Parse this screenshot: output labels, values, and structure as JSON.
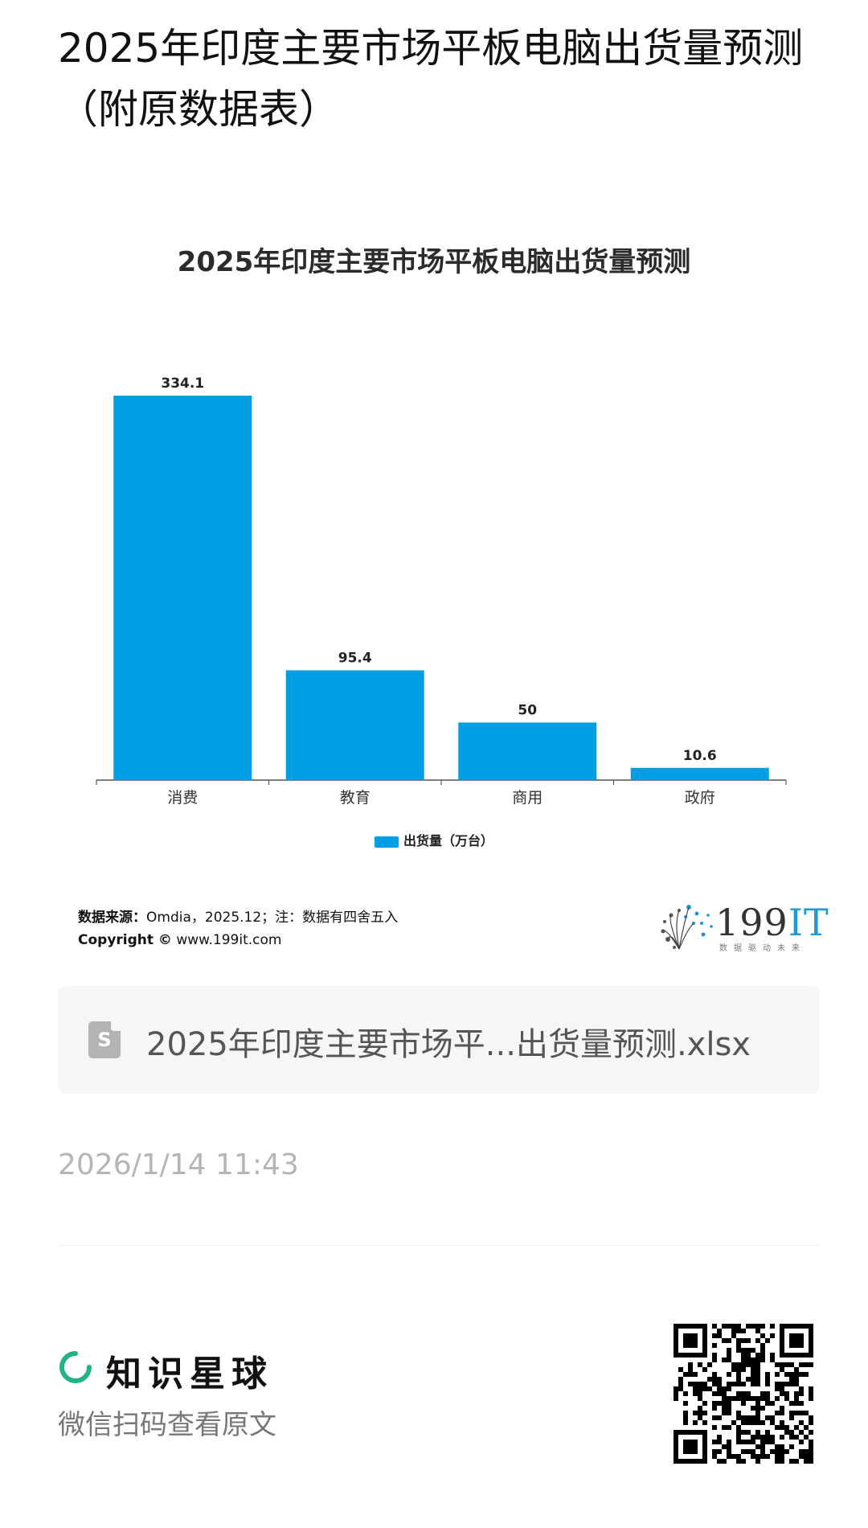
{
  "page": {
    "title": "2025年印度主要市场平板电脑出货量预测（附原数据表）"
  },
  "chart_data": {
    "type": "bar",
    "title": "2025年印度主要市场平板电脑出货量预测",
    "categories": [
      "消费",
      "教育",
      "商用",
      "政府"
    ],
    "series": [
      {
        "name": "出货量（万台）",
        "values": [
          334.1,
          95.4,
          50,
          10.6
        ]
      }
    ],
    "data_labels": [
      "334.1",
      "95.4",
      "50",
      "10.6"
    ],
    "ylim": [
      0,
      334.1
    ],
    "legend_position": "bottom",
    "grid": false,
    "bar_color": "#009fe3"
  },
  "source": {
    "label": "数据来源：",
    "text": "Omdia，2025.12；注：数据有四舍五入",
    "copyright_label": "Copyright ©",
    "copyright_text": "www.199it.com"
  },
  "logo": {
    "text": "199",
    "text_it": "IT",
    "slogan": "数据驱动未来"
  },
  "file": {
    "icon": "spreadsheet-file-icon",
    "icon_letter": "S",
    "name": "2025年印度主要市场平...出货量预测.xlsx"
  },
  "timestamp": "2026/1/14 11:43",
  "footer": {
    "brand_name": "知识星球",
    "brand_icon": "zsxq-logo-icon",
    "brand_color": "#21b287",
    "scan_hint": "微信扫码查看原文",
    "qr_icon": "qr-code-icon"
  }
}
